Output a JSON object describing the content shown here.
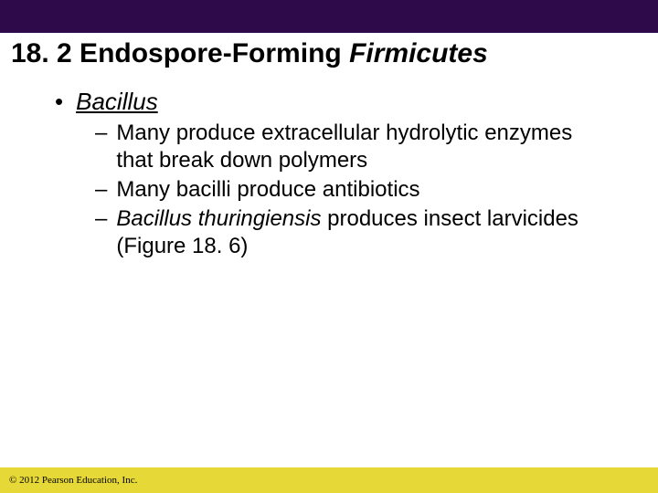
{
  "colors": {
    "top_bar": "#2f0a4a",
    "footer_bg": "#e6d837",
    "background": "#ffffff",
    "text": "#000000"
  },
  "title": {
    "prefix": "18. 2 Endospore-Forming ",
    "italic": "Firmicutes",
    "fontsize": 30
  },
  "bullet1": {
    "marker": "•",
    "text": "Bacillus",
    "fontsize": 26
  },
  "sub": {
    "marker": "–",
    "items": [
      {
        "plain": "Many produce extracellular hydrolytic enzymes that break down polymers",
        "italic": ""
      },
      {
        "plain": "Many bacilli produce antibiotics",
        "italic": ""
      },
      {
        "italic": "Bacillus thuringiensis",
        "plain": " produces insect larvicides (Figure 18. 6)"
      }
    ],
    "fontsize": 24
  },
  "footer": {
    "text": "© 2012 Pearson Education, Inc.",
    "fontsize": 11
  }
}
